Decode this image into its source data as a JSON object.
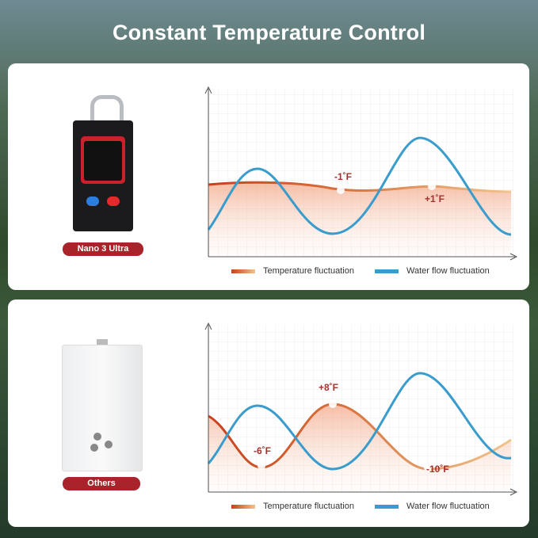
{
  "title": "Constant Temperature Control",
  "panels": [
    {
      "product_label": "Nano 3 Ultra",
      "annotations": [
        "-1˚F",
        "+1˚F"
      ],
      "legend": {
        "temperature": "Temperature fluctuation",
        "water": "Water flow fluctuation"
      }
    },
    {
      "product_label": "Others",
      "annotations": [
        "+8˚F",
        "-6˚F",
        "-10˚F"
      ],
      "legend": {
        "temperature": "Temperature fluctuation",
        "water": "Water flow fluctuation"
      }
    }
  ],
  "colors": {
    "temperature": "#c8401c",
    "water": "#3a9ccc",
    "badge": "#a8242a"
  }
}
